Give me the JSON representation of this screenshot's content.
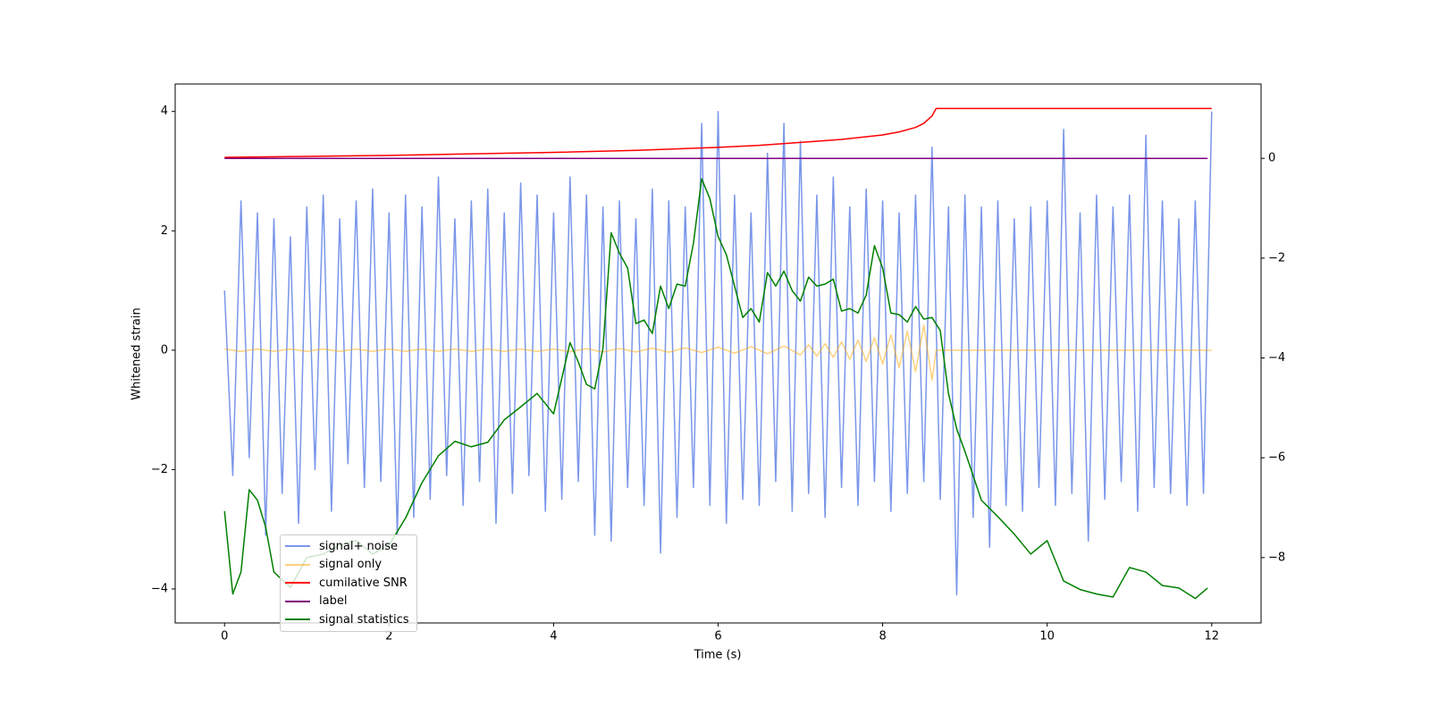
{
  "chart_data": {
    "type": "line",
    "xlabel": "Time (s)",
    "ylabel": "Whitened strain",
    "xlim": [
      -0.6,
      12.6
    ],
    "xticks": [
      0,
      2,
      4,
      6,
      8,
      10,
      12
    ],
    "ylim": [
      -4.57,
      4.46
    ],
    "yticks": [
      {
        "value": -4,
        "label": "−4"
      },
      {
        "value": -2,
        "label": "−2"
      },
      0,
      2,
      4
    ],
    "y2lim": [
      -9.31,
      1.49
    ],
    "y2ticks": [
      {
        "value": -8,
        "label": "−8"
      },
      {
        "value": -6,
        "label": "−6"
      },
      {
        "value": -4,
        "label": "−4"
      },
      {
        "value": -2,
        "label": "−2"
      },
      0
    ],
    "series": [
      {
        "name": "signal+ noise",
        "color": "royalblue",
        "alpha": 0.7,
        "x": [
          0,
          0.1,
          0.2,
          0.3,
          0.4,
          0.5,
          0.6,
          0.7,
          0.8,
          0.9,
          1,
          1.1,
          1.2,
          1.3,
          1.4,
          1.5,
          1.6,
          1.7,
          1.8,
          1.9,
          2,
          2.1,
          2.2,
          2.3,
          2.4,
          2.5,
          2.6,
          2.7,
          2.8,
          2.9,
          3,
          3.1,
          3.2,
          3.3,
          3.4,
          3.5,
          3.6,
          3.7,
          3.8,
          3.9,
          4,
          4.1,
          4.2,
          4.3,
          4.4,
          4.5,
          4.6,
          4.7,
          4.8,
          4.9,
          5,
          5.1,
          5.2,
          5.3,
          5.4,
          5.5,
          5.6,
          5.7,
          5.8,
          5.9,
          6,
          6.1,
          6.2,
          6.3,
          6.4,
          6.5,
          6.6,
          6.7,
          6.8,
          6.9,
          7,
          7.1,
          7.2,
          7.3,
          7.4,
          7.5,
          7.6,
          7.7,
          7.8,
          7.9,
          8,
          8.1,
          8.2,
          8.3,
          8.4,
          8.5,
          8.6,
          8.7,
          8.8,
          8.9,
          9,
          9.1,
          9.2,
          9.3,
          9.4,
          9.5,
          9.6,
          9.7,
          9.8,
          9.9,
          10,
          10.1,
          10.2,
          10.3,
          10.4,
          10.5,
          10.6,
          10.7,
          10.8,
          10.9,
          11,
          11.1,
          11.2,
          11.3,
          11.4,
          11.5,
          11.6,
          11.7,
          11.8,
          11.9,
          12
        ],
        "values": [
          1.0,
          -2.1,
          2.5,
          -1.8,
          2.3,
          -3.1,
          2.2,
          -2.4,
          1.9,
          -2.9,
          2.4,
          -2.0,
          2.6,
          -2.7,
          2.2,
          -1.9,
          2.5,
          -2.3,
          2.7,
          -2.2,
          2.3,
          -3.1,
          2.6,
          -2.8,
          2.4,
          -2.5,
          2.9,
          -2.1,
          2.2,
          -2.6,
          2.5,
          -2.2,
          2.7,
          -2.9,
          2.3,
          -2.4,
          2.8,
          -2.1,
          2.6,
          -2.7,
          2.3,
          -2.5,
          2.9,
          -2.2,
          2.6,
          -3.1,
          2.4,
          -3.2,
          2.5,
          -2.3,
          2.2,
          -2.6,
          2.7,
          -3.4,
          2.5,
          -2.8,
          2.4,
          -2.3,
          3.8,
          -2.6,
          4.0,
          -2.9,
          2.6,
          -2.5,
          2.3,
          -2.6,
          3.3,
          -2.2,
          3.8,
          -2.7,
          3.5,
          -2.4,
          2.6,
          -2.8,
          2.9,
          -2.3,
          2.4,
          -2.6,
          2.7,
          -2.2,
          2.5,
          -2.7,
          2.3,
          -2.4,
          2.6,
          -2.2,
          3.4,
          -2.5,
          2.4,
          -4.1,
          2.6,
          -2.8,
          2.4,
          -3.3,
          2.5,
          -2.6,
          2.2,
          -2.7,
          2.4,
          -2.3,
          2.5,
          -2.6,
          3.7,
          -2.4,
          2.3,
          -3.2,
          2.6,
          -2.5,
          2.4,
          -2.2,
          2.6,
          -2.7,
          3.6,
          -2.3,
          2.5,
          -2.4,
          2.2,
          -2.6,
          2.5,
          -2.4,
          4.0
        ]
      },
      {
        "name": "signal only",
        "color": "orange",
        "alpha": 0.5,
        "x": [
          0,
          0.2,
          0.4,
          0.6,
          0.8,
          1,
          1.2,
          1.4,
          1.6,
          1.8,
          2,
          2.2,
          2.4,
          2.6,
          2.8,
          3,
          3.2,
          3.4,
          3.6,
          3.8,
          4,
          4.2,
          4.4,
          4.6,
          4.8,
          5,
          5.2,
          5.4,
          5.6,
          5.8,
          6,
          6.2,
          6.4,
          6.6,
          6.8,
          7,
          7.1,
          7.2,
          7.3,
          7.4,
          7.5,
          7.6,
          7.7,
          7.8,
          7.9,
          8,
          8.1,
          8.2,
          8.3,
          8.4,
          8.5,
          8.6,
          8.65,
          12
        ],
        "values": [
          0.02,
          -0.02,
          0.02,
          -0.02,
          0.02,
          -0.02,
          0.02,
          -0.02,
          0.02,
          -0.02,
          0.02,
          -0.02,
          0.02,
          -0.02,
          0.02,
          -0.02,
          0.02,
          -0.02,
          0.02,
          -0.02,
          0.02,
          -0.025,
          0.025,
          -0.03,
          0.03,
          -0.03,
          0.035,
          -0.035,
          0.04,
          -0.04,
          0.05,
          -0.05,
          0.06,
          -0.06,
          0.07,
          -0.08,
          0.09,
          -0.1,
          0.11,
          -0.12,
          0.14,
          -0.15,
          0.17,
          -0.19,
          0.21,
          -0.23,
          0.26,
          -0.29,
          0.32,
          -0.36,
          0.42,
          -0.5,
          0,
          0
        ]
      },
      {
        "name": "cumilative SNR",
        "color": "red",
        "axis": "y2",
        "x": [
          0,
          1,
          2,
          3,
          4,
          5,
          6,
          6.5,
          7,
          7.5,
          8,
          8.2,
          8.4,
          8.5,
          8.6,
          8.65,
          12
        ],
        "values": [
          0.02,
          0.04,
          0.06,
          0.09,
          0.12,
          0.16,
          0.22,
          0.26,
          0.32,
          0.38,
          0.47,
          0.53,
          0.62,
          0.7,
          0.85,
          1.0,
          1.0
        ]
      },
      {
        "name": "label",
        "color": "purple",
        "axis": "y2",
        "x": [
          0,
          11.95
        ],
        "values": [
          0,
          0
        ]
      },
      {
        "name": "signal statistics",
        "color": "green",
        "axis": "y2",
        "x": [
          0,
          0.1,
          0.2,
          0.3,
          0.4,
          0.5,
          0.6,
          0.8,
          1,
          1.2,
          1.4,
          1.6,
          1.8,
          2,
          2.2,
          2.4,
          2.6,
          2.8,
          3,
          3.2,
          3.4,
          3.6,
          3.8,
          4,
          4.2,
          4.3,
          4.4,
          4.5,
          4.6,
          4.7,
          4.8,
          4.9,
          5,
          5.1,
          5.2,
          5.3,
          5.4,
          5.5,
          5.6,
          5.7,
          5.8,
          5.9,
          6,
          6.1,
          6.2,
          6.3,
          6.4,
          6.5,
          6.6,
          6.7,
          6.8,
          6.9,
          7,
          7.1,
          7.2,
          7.3,
          7.4,
          7.5,
          7.6,
          7.7,
          7.8,
          7.9,
          8,
          8.1,
          8.2,
          8.3,
          8.4,
          8.5,
          8.6,
          8.7,
          8.8,
          8.9,
          9,
          9.2,
          9.4,
          9.6,
          9.8,
          10,
          10.2,
          10.4,
          10.6,
          10.8,
          11,
          11.2,
          11.4,
          11.6,
          11.8,
          11.95
        ],
        "values": [
          -7.07,
          -8.73,
          -8.29,
          -6.64,
          -6.85,
          -7.39,
          -8.29,
          -8.6,
          -8.0,
          -7.93,
          -7.75,
          -7.66,
          -7.93,
          -7.75,
          -7.21,
          -6.5,
          -5.96,
          -5.67,
          -5.78,
          -5.69,
          -5.24,
          -4.98,
          -4.71,
          -5.12,
          -3.69,
          -4.08,
          -4.53,
          -4.62,
          -3.81,
          -1.49,
          -1.9,
          -2.2,
          -3.31,
          -3.24,
          -3.51,
          -2.56,
          -3.01,
          -2.52,
          -2.56,
          -1.7,
          -0.41,
          -0.81,
          -1.57,
          -1.93,
          -2.56,
          -3.19,
          -3.01,
          -3.28,
          -2.29,
          -2.56,
          -2.26,
          -2.65,
          -2.86,
          -2.38,
          -2.56,
          -2.52,
          -2.42,
          -3.06,
          -3.01,
          -3.1,
          -2.74,
          -1.75,
          -2.2,
          -3.1,
          -3.13,
          -3.28,
          -2.97,
          -3.22,
          -3.19,
          -3.45,
          -4.71,
          -5.42,
          -5.87,
          -6.85,
          -7.18,
          -7.53,
          -7.93,
          -7.66,
          -8.47,
          -8.64,
          -8.73,
          -8.79,
          -8.2,
          -8.29,
          -8.56,
          -8.61,
          -8.82,
          -8.61
        ]
      }
    ]
  }
}
